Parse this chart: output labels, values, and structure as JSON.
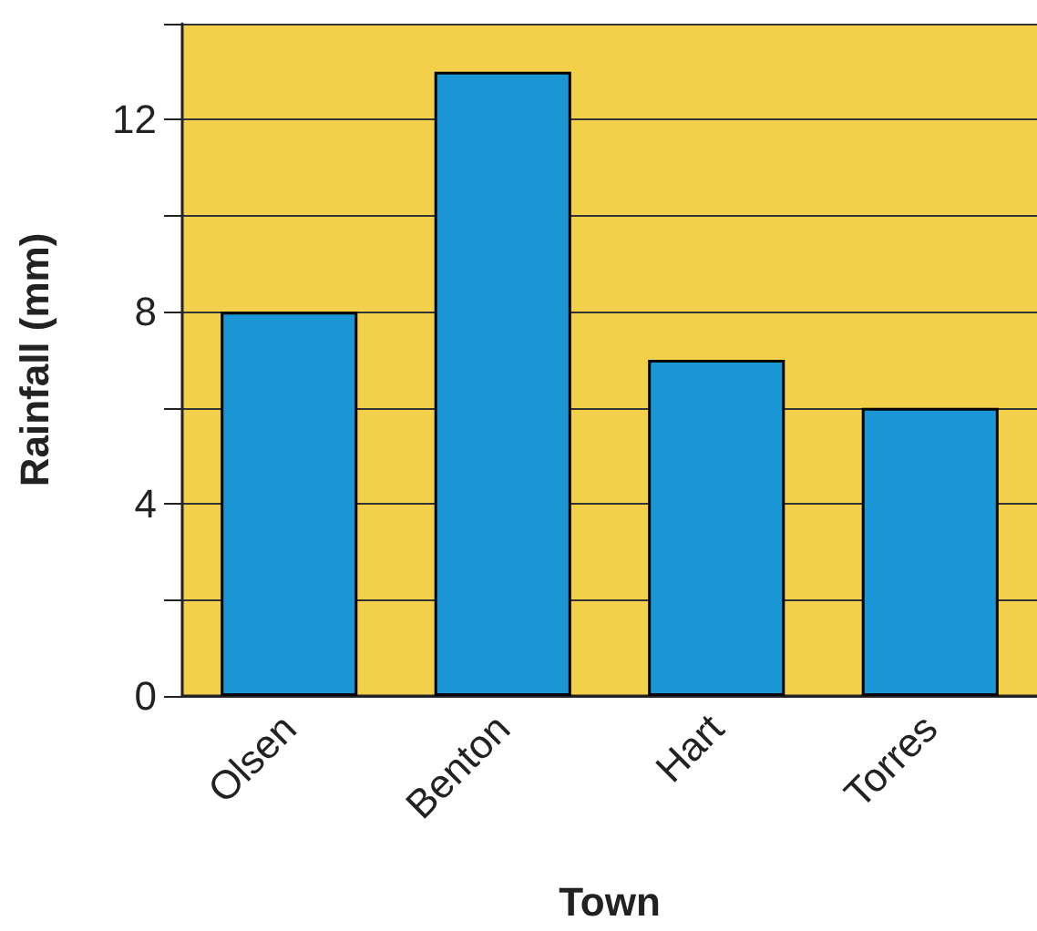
{
  "chart_data": {
    "type": "bar",
    "xlabel": "Town",
    "ylabel": "Rainfall (mm)",
    "categories": [
      "Olsen",
      "Benton",
      "Hart",
      "Torres"
    ],
    "values": [
      8,
      13,
      7,
      6
    ],
    "color": "#1a96d4",
    "ylim": [
      0,
      14
    ],
    "yticks": [
      0,
      {
        "value": 2,
        "label": null
      },
      4,
      {
        "value": 6,
        "label": null
      },
      8,
      {
        "value": 10,
        "label": null
      },
      12,
      {
        "value": 14,
        "label": null
      }
    ],
    "grid": true
  }
}
